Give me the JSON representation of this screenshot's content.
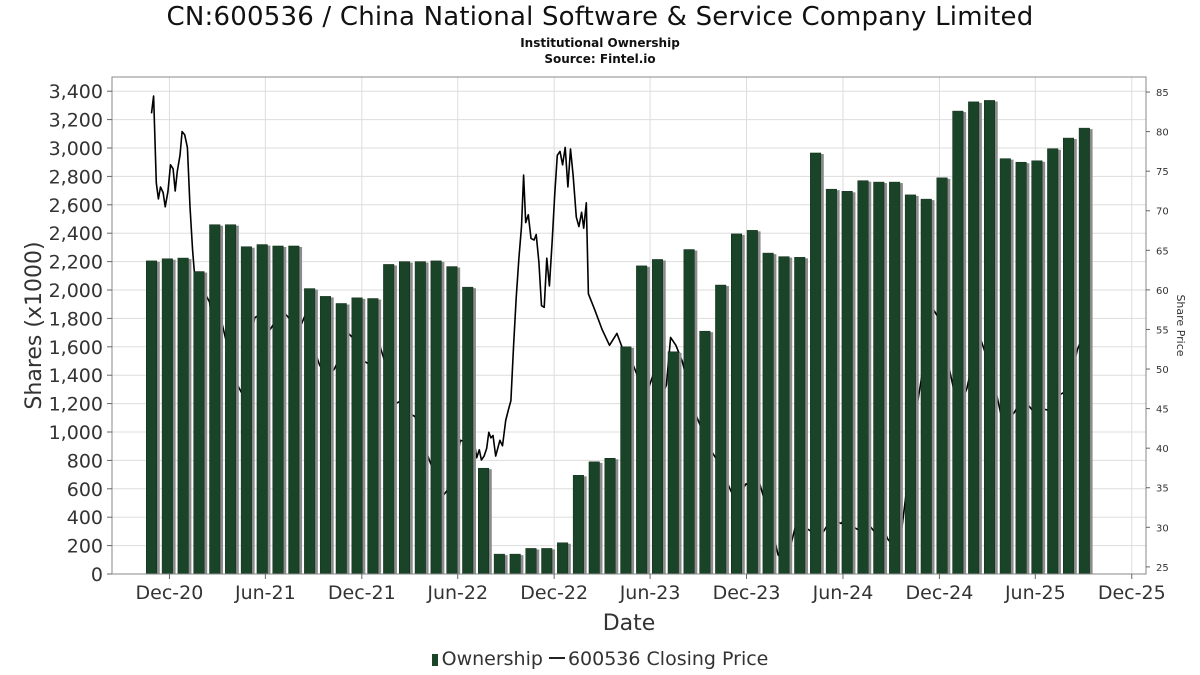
{
  "title": "CN:600536 / China National Software & Service Company Limited",
  "subtitle": "Institutional Ownership",
  "source": "Source: Fintel.io",
  "colors": {
    "bar": "#1a4428",
    "bar_shadow": "#8c8c8c",
    "line": "#000000",
    "grid": "#dddddd"
  },
  "legend": {
    "ownership": "Ownership",
    "price": "600536 Closing Price"
  },
  "chart_data": {
    "type": "bar",
    "xlabel": "Date",
    "ylabel": "Shares (x1000)",
    "y2label": "Share Price",
    "ylim": [
      0,
      3500
    ],
    "y2lim": [
      24.1,
      86.9
    ],
    "xlim": [
      "2020-08-14",
      "2025-12-28"
    ],
    "grid": true,
    "legend_position": "bottom",
    "x_ticks": [
      {
        "label": "Dec-20",
        "date": "2020-12-01"
      },
      {
        "label": "Jun-21",
        "date": "2021-06-01"
      },
      {
        "label": "Dec-21",
        "date": "2021-12-01"
      },
      {
        "label": "Jun-22",
        "date": "2022-06-01"
      },
      {
        "label": "Dec-22",
        "date": "2022-12-01"
      },
      {
        "label": "Jun-23",
        "date": "2023-06-01"
      },
      {
        "label": "Dec-23",
        "date": "2023-12-01"
      },
      {
        "label": "Jun-24",
        "date": "2024-06-01"
      },
      {
        "label": "Dec-24",
        "date": "2024-12-01"
      },
      {
        "label": "Jun-25",
        "date": "2025-06-01"
      },
      {
        "label": "Dec-25",
        "date": "2025-12-01"
      }
    ],
    "y_ticks": [
      0,
      200,
      400,
      600,
      800,
      1000,
      1200,
      1400,
      1600,
      1800,
      2000,
      2200,
      2400,
      2600,
      2800,
      3000,
      3200,
      3400
    ],
    "y_tick_labels": [
      "0",
      "200",
      "400",
      "600",
      "800",
      "1,000",
      "1,200",
      "1,400",
      "1,600",
      "1,800",
      "2,000",
      "2,200",
      "2,400",
      "2,600",
      "2,800",
      "3,000",
      "3,200",
      "3,400"
    ],
    "y2_ticks": [
      25,
      30,
      35,
      40,
      45,
      50,
      55,
      60,
      65,
      70,
      75,
      80,
      85
    ],
    "series": [
      {
        "name": "Ownership",
        "type": "bar",
        "points": [
          [
            "2020-10-28",
            2205
          ],
          [
            "2020-11-27",
            2220
          ],
          [
            "2020-12-27",
            2225
          ],
          [
            "2021-01-26",
            2130
          ],
          [
            "2021-02-25",
            2460
          ],
          [
            "2021-03-27",
            2460
          ],
          [
            "2021-04-26",
            2305
          ],
          [
            "2021-05-26",
            2320
          ],
          [
            "2021-06-25",
            2310
          ],
          [
            "2021-07-25",
            2310
          ],
          [
            "2021-08-24",
            2010
          ],
          [
            "2021-09-23",
            1955
          ],
          [
            "2021-10-23",
            1905
          ],
          [
            "2021-11-22",
            1945
          ],
          [
            "2021-12-22",
            1940
          ],
          [
            "2022-01-21",
            2180
          ],
          [
            "2022-02-20",
            2200
          ],
          [
            "2022-03-22",
            2200
          ],
          [
            "2022-04-21",
            2205
          ],
          [
            "2022-05-21",
            2165
          ],
          [
            "2022-06-20",
            2020
          ],
          [
            "2022-07-20",
            745
          ],
          [
            "2022-08-19",
            140
          ],
          [
            "2022-09-18",
            140
          ],
          [
            "2022-10-18",
            180
          ],
          [
            "2022-11-17",
            180
          ],
          [
            "2022-12-17",
            220
          ],
          [
            "2023-01-16",
            695
          ],
          [
            "2023-02-15",
            790
          ],
          [
            "2023-03-17",
            815
          ],
          [
            "2023-04-16",
            1600
          ],
          [
            "2023-05-16",
            2170
          ],
          [
            "2023-06-15",
            2215
          ],
          [
            "2023-07-15",
            1565
          ],
          [
            "2023-08-14",
            2285
          ],
          [
            "2023-09-13",
            1710
          ],
          [
            "2023-10-13",
            2035
          ],
          [
            "2023-11-12",
            2395
          ],
          [
            "2023-12-12",
            2420
          ],
          [
            "2024-01-11",
            2260
          ],
          [
            "2024-02-10",
            2235
          ],
          [
            "2024-03-11",
            2230
          ],
          [
            "2024-04-10",
            2965
          ],
          [
            "2024-05-10",
            2710
          ],
          [
            "2024-06-09",
            2695
          ],
          [
            "2024-07-09",
            2770
          ],
          [
            "2024-08-08",
            2760
          ],
          [
            "2024-09-07",
            2760
          ],
          [
            "2024-10-07",
            2670
          ],
          [
            "2024-11-06",
            2640
          ],
          [
            "2024-12-06",
            2790
          ],
          [
            "2025-01-05",
            3260
          ],
          [
            "2025-02-04",
            3325
          ],
          [
            "2025-03-06",
            3335
          ],
          [
            "2025-04-05",
            2925
          ],
          [
            "2025-05-05",
            2900
          ],
          [
            "2025-06-04",
            2910
          ],
          [
            "2025-07-04",
            2995
          ],
          [
            "2025-08-03",
            3070
          ],
          [
            "2025-09-02",
            3140
          ]
        ]
      },
      {
        "name": "600536 Closing Price",
        "type": "line",
        "points": [
          [
            "2020-10-28",
            82.3
          ],
          [
            "2020-11-01",
            84.5
          ],
          [
            "2020-11-06",
            73.5
          ],
          [
            "2020-11-10",
            71.5
          ],
          [
            "2020-11-14",
            73.0
          ],
          [
            "2020-11-19",
            72.3
          ],
          [
            "2020-11-23",
            70.5
          ],
          [
            "2020-11-28",
            72.4
          ],
          [
            "2020-12-03",
            75.8
          ],
          [
            "2020-12-08",
            75.3
          ],
          [
            "2020-12-12",
            72.5
          ],
          [
            "2020-12-16",
            75.0
          ],
          [
            "2020-12-21",
            77.0
          ],
          [
            "2020-12-25",
            80.0
          ],
          [
            "2020-12-30",
            79.6
          ],
          [
            "2021-01-04",
            78.0
          ],
          [
            "2021-01-09",
            70.5
          ],
          [
            "2021-01-14",
            65.0
          ],
          [
            "2021-01-20",
            60.0
          ],
          [
            "2021-01-26",
            59.5
          ],
          [
            "2021-02-05",
            59.7
          ],
          [
            "2021-02-15",
            58.5
          ],
          [
            "2021-02-25",
            53.5
          ],
          [
            "2021-03-10",
            56.0
          ],
          [
            "2021-03-24",
            52.0
          ],
          [
            "2021-04-05",
            48.5
          ],
          [
            "2021-04-17",
            47.0
          ],
          [
            "2021-05-01",
            53.0
          ],
          [
            "2021-05-12",
            56.5
          ],
          [
            "2021-05-26",
            57.0
          ],
          [
            "2021-06-10",
            55.0
          ],
          [
            "2021-06-25",
            56.5
          ],
          [
            "2021-07-08",
            57.0
          ],
          [
            "2021-07-22",
            56.0
          ],
          [
            "2021-08-04",
            55.0
          ],
          [
            "2021-08-17",
            57.0
          ],
          [
            "2021-08-30",
            53.0
          ],
          [
            "2021-09-12",
            50.5
          ],
          [
            "2021-09-26",
            49.0
          ],
          [
            "2021-10-10",
            50.0
          ],
          [
            "2021-10-24",
            52.0
          ],
          [
            "2021-11-06",
            54.5
          ],
          [
            "2021-11-20",
            53.5
          ],
          [
            "2021-12-04",
            51.0
          ],
          [
            "2021-12-20",
            50.5
          ],
          [
            "2022-01-04",
            53.0
          ],
          [
            "2022-01-18",
            50.0
          ],
          [
            "2022-01-30",
            45.5
          ],
          [
            "2022-02-14",
            46.0
          ],
          [
            "2022-02-26",
            44.5
          ],
          [
            "2022-03-12",
            44.0
          ],
          [
            "2022-03-26",
            41.0
          ],
          [
            "2022-04-08",
            38.5
          ],
          [
            "2022-04-20",
            36.5
          ],
          [
            "2022-05-04",
            34.0
          ],
          [
            "2022-05-16",
            35.0
          ],
          [
            "2022-05-28",
            38.0
          ],
          [
            "2022-06-06",
            41.0
          ],
          [
            "2022-06-14",
            40.8
          ],
          [
            "2022-06-20",
            40.4
          ],
          [
            "2022-06-26",
            40.6
          ],
          [
            "2022-07-02",
            40.9
          ],
          [
            "2022-07-07",
            38.8
          ],
          [
            "2022-07-12",
            39.8
          ],
          [
            "2022-07-16",
            38.5
          ],
          [
            "2022-07-21",
            39.0
          ],
          [
            "2022-07-26",
            40.0
          ],
          [
            "2022-07-30",
            42.0
          ],
          [
            "2022-08-03",
            41.3
          ],
          [
            "2022-08-07",
            41.6
          ],
          [
            "2022-08-12",
            39.0
          ],
          [
            "2022-08-20",
            41.0
          ],
          [
            "2022-08-25",
            40.3
          ],
          [
            "2022-08-31",
            43.5
          ],
          [
            "2022-09-05",
            44.8
          ],
          [
            "2022-09-10",
            46.0
          ],
          [
            "2022-09-15",
            53.0
          ],
          [
            "2022-09-20",
            59.0
          ],
          [
            "2022-09-25",
            64.0
          ],
          [
            "2022-09-30",
            68.0
          ],
          [
            "2022-10-04",
            74.5
          ],
          [
            "2022-10-08",
            68.5
          ],
          [
            "2022-10-13",
            69.5
          ],
          [
            "2022-10-18",
            66.5
          ],
          [
            "2022-10-24",
            66.3
          ],
          [
            "2022-10-28",
            67.0
          ],
          [
            "2022-11-02",
            63.5
          ],
          [
            "2022-11-07",
            58.0
          ],
          [
            "2022-11-12",
            57.8
          ],
          [
            "2022-11-17",
            64.0
          ],
          [
            "2022-11-22",
            60.5
          ],
          [
            "2022-11-27",
            66.0
          ],
          [
            "2022-12-02",
            72.0
          ],
          [
            "2022-12-07",
            77.0
          ],
          [
            "2022-12-12",
            77.5
          ],
          [
            "2022-12-17",
            75.8
          ],
          [
            "2022-12-22",
            78.0
          ],
          [
            "2022-12-27",
            73.0
          ],
          [
            "2023-01-01",
            77.8
          ],
          [
            "2023-01-06",
            74.5
          ],
          [
            "2023-01-12",
            69.2
          ],
          [
            "2023-01-17",
            68.0
          ],
          [
            "2023-01-22",
            69.8
          ],
          [
            "2023-01-26",
            67.8
          ],
          [
            "2023-01-31",
            71.0
          ],
          [
            "2023-02-04",
            59.5
          ],
          [
            "2023-02-16",
            57.5
          ],
          [
            "2023-03-02",
            55.0
          ],
          [
            "2023-03-16",
            53.0
          ],
          [
            "2023-03-30",
            54.5
          ],
          [
            "2023-04-13",
            52.0
          ],
          [
            "2023-04-27",
            51.0
          ],
          [
            "2023-05-12",
            48.5
          ],
          [
            "2023-05-26",
            47.0
          ],
          [
            "2023-06-08",
            49.5
          ],
          [
            "2023-06-20",
            46.0
          ],
          [
            "2023-07-02",
            48.0
          ],
          [
            "2023-07-10",
            54.0
          ],
          [
            "2023-07-20",
            53.0
          ],
          [
            "2023-08-01",
            51.0
          ],
          [
            "2023-08-14",
            47.5
          ],
          [
            "2023-08-28",
            44.0
          ],
          [
            "2023-09-10",
            42.0
          ],
          [
            "2023-09-22",
            40.0
          ],
          [
            "2023-10-06",
            38.5
          ],
          [
            "2023-10-20",
            36.5
          ],
          [
            "2023-11-02",
            34.5
          ],
          [
            "2023-11-16",
            34.0
          ],
          [
            "2023-11-30",
            35.5
          ],
          [
            "2023-12-12",
            35.0
          ],
          [
            "2023-12-24",
            36.0
          ],
          [
            "2024-01-06",
            33.0
          ],
          [
            "2024-01-18",
            30.0
          ],
          [
            "2024-01-30",
            26.5
          ],
          [
            "2024-02-12",
            25.8
          ],
          [
            "2024-02-24",
            28.0
          ],
          [
            "2024-03-08",
            31.5
          ],
          [
            "2024-03-20",
            30.0
          ],
          [
            "2024-04-02",
            29.5
          ],
          [
            "2024-04-16",
            28.5
          ],
          [
            "2024-04-30",
            30.0
          ],
          [
            "2024-05-14",
            31.0
          ],
          [
            "2024-05-28",
            30.5
          ],
          [
            "2024-06-10",
            31.2
          ],
          [
            "2024-06-22",
            30.0
          ],
          [
            "2024-07-05",
            29.5
          ],
          [
            "2024-07-18",
            30.5
          ],
          [
            "2024-07-30",
            29.5
          ],
          [
            "2024-08-12",
            30.5
          ],
          [
            "2024-08-25",
            28.5
          ],
          [
            "2024-09-08",
            27.5
          ],
          [
            "2024-09-20",
            29.5
          ],
          [
            "2024-10-02",
            36.0
          ],
          [
            "2024-10-14",
            43.0
          ],
          [
            "2024-10-26",
            48.0
          ],
          [
            "2024-11-08",
            53.5
          ],
          [
            "2024-11-20",
            57.5
          ],
          [
            "2024-12-03",
            56.0
          ],
          [
            "2024-12-15",
            51.5
          ],
          [
            "2024-12-28",
            47.5
          ],
          [
            "2025-01-10",
            45.5
          ],
          [
            "2025-01-22",
            47.5
          ],
          [
            "2025-02-04",
            51.5
          ],
          [
            "2025-02-16",
            54.0
          ],
          [
            "2025-03-01",
            51.5
          ],
          [
            "2025-03-14",
            48.5
          ],
          [
            "2025-03-27",
            44.5
          ],
          [
            "2025-04-09",
            43.5
          ],
          [
            "2025-04-22",
            44.5
          ],
          [
            "2025-05-05",
            46.0
          ],
          [
            "2025-05-18",
            45.5
          ],
          [
            "2025-05-30",
            44.5
          ],
          [
            "2025-06-12",
            45.0
          ],
          [
            "2025-06-26",
            44.8
          ],
          [
            "2025-07-10",
            46.5
          ],
          [
            "2025-07-24",
            47.0
          ],
          [
            "2025-08-06",
            48.5
          ],
          [
            "2025-08-20",
            52.5
          ],
          [
            "2025-09-02",
            54.5
          ],
          [
            "2025-09-14",
            49.5
          ]
        ]
      }
    ]
  }
}
